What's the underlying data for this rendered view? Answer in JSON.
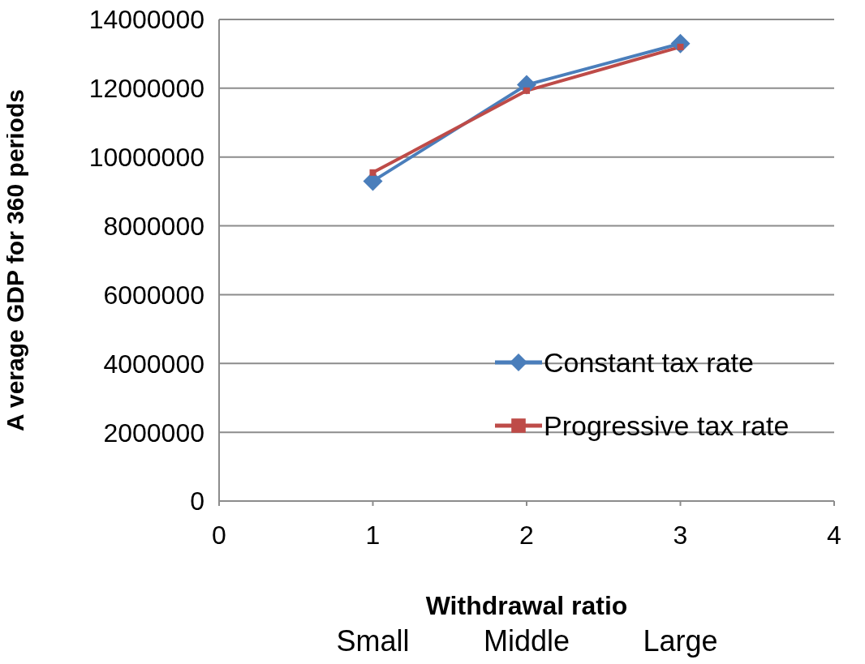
{
  "chart_data": {
    "type": "line",
    "xlabel": "Withdrawal ratio",
    "ylabel": "A verage GDP for 360 periods",
    "x": [
      1,
      2,
      3
    ],
    "series": [
      {
        "name": "Constant tax rate",
        "color": "#4a7ebb",
        "marker": "diamond",
        "values": [
          9300000,
          12100000,
          13300000
        ]
      },
      {
        "name": "Progressive tax rate",
        "color": "#be4b48",
        "marker": "square",
        "values": [
          9550000,
          11930000,
          13200000
        ]
      }
    ],
    "xlim": [
      0,
      4
    ],
    "xticks": [
      0,
      1,
      2,
      3,
      4
    ],
    "ylim": [
      0,
      14000000
    ],
    "yticks": [
      0,
      2000000,
      4000000,
      6000000,
      8000000,
      10000000,
      12000000,
      14000000
    ],
    "grid": "y",
    "legend": "bottom right",
    "line_style": "solid",
    "annotations": [
      "Small",
      "Middle",
      "Large"
    ]
  }
}
